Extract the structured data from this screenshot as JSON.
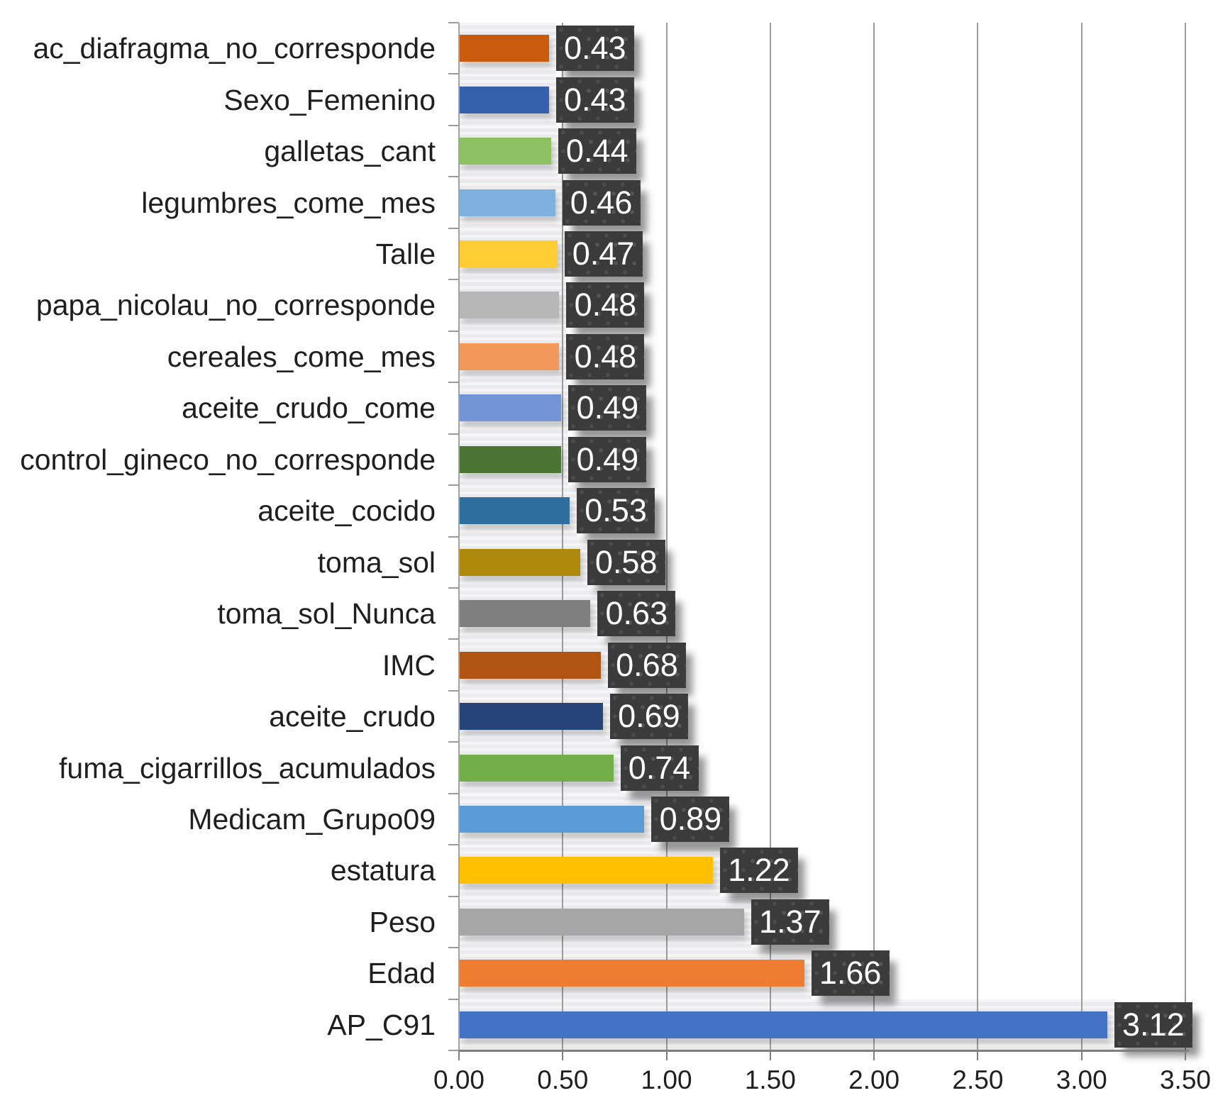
{
  "chart_data": {
    "type": "bar",
    "orientation": "horizontal",
    "title": "",
    "xlabel": "",
    "ylabel": "",
    "grid": true,
    "legend": false,
    "x_axis": {
      "min": 0,
      "max": 3.5,
      "tick_step": 0.5,
      "tick_labels": [
        "0.00",
        "0.50",
        "1.00",
        "1.50",
        "2.00",
        "2.50",
        "3.00",
        "3.50"
      ]
    },
    "bars": [
      {
        "label": "ac_diafragma_no_corresponde",
        "value": 0.43,
        "display_value": "0.43",
        "color": "#C95B0F"
      },
      {
        "label": "Sexo_Femenino",
        "value": 0.43,
        "display_value": "0.43",
        "color": "#3560AB"
      },
      {
        "label": "galletas_cant",
        "value": 0.44,
        "display_value": "0.44",
        "color": "#8DC063"
      },
      {
        "label": "legumbres_come_mes",
        "value": 0.46,
        "display_value": "0.46",
        "color": "#7DB0DE"
      },
      {
        "label": "Talle",
        "value": 0.47,
        "display_value": "0.47",
        "color": "#FFCE34"
      },
      {
        "label": "papa_nicolau_no_corresponde",
        "value": 0.48,
        "display_value": "0.48",
        "color": "#B7B7B7"
      },
      {
        "label": "cereales_come_mes",
        "value": 0.48,
        "display_value": "0.48",
        "color": "#F2985B"
      },
      {
        "label": "aceite_crudo_come",
        "value": 0.49,
        "display_value": "0.49",
        "color": "#7394D6"
      },
      {
        "label": "control_gineco_no_corresponde",
        "value": 0.49,
        "display_value": "0.49",
        "color": "#4C7434"
      },
      {
        "label": "aceite_cocido",
        "value": 0.53,
        "display_value": "0.53",
        "color": "#2E6F9F"
      },
      {
        "label": "toma_sol",
        "value": 0.58,
        "display_value": "0.58",
        "color": "#AD8A0C"
      },
      {
        "label": "toma_sol_Nunca",
        "value": 0.63,
        "display_value": "0.63",
        "color": "#7E7E7E"
      },
      {
        "label": "IMC",
        "value": 0.68,
        "display_value": "0.68",
        "color": "#B05414"
      },
      {
        "label": "aceite_crudo",
        "value": 0.69,
        "display_value": "0.69",
        "color": "#264478"
      },
      {
        "label": "fuma_cigarrillos_acumulados",
        "value": 0.74,
        "display_value": "0.74",
        "color": "#71AD48"
      },
      {
        "label": "Medicam_Grupo09",
        "value": 0.89,
        "display_value": "0.89",
        "color": "#5C9CD6"
      },
      {
        "label": "estatura",
        "value": 1.22,
        "display_value": "1.22",
        "color": "#FEC001"
      },
      {
        "label": "Peso",
        "value": 1.37,
        "display_value": "1.37",
        "color": "#A6A6A6"
      },
      {
        "label": "Edad",
        "value": 1.66,
        "display_value": "1.66",
        "color": "#EE7D31"
      },
      {
        "label": "AP_C91",
        "value": 3.12,
        "display_value": "3.12",
        "color": "#4473C5"
      }
    ],
    "style": {
      "background": "#FFFFFF",
      "track_color": "#EBEBED",
      "gridline_color": "#9B9B9B",
      "axis_line_color": "#7F7F7F",
      "value_box_bg": "#3B3B3B",
      "value_box_text": "#FFFFFF",
      "label_text_color": "#1F1F1F"
    }
  }
}
